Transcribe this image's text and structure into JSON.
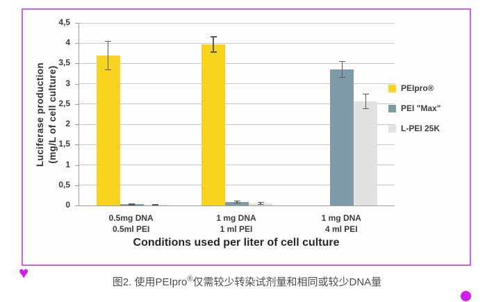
{
  "caption": {
    "prefix": "图2. 使用PEIpro",
    "sup": "®",
    "suffix": "仅需较少转染试剂量和相同或较少DNA量"
  },
  "icons": {
    "heart": "♥",
    "dot": "magenta-circle"
  },
  "colors": {
    "frame": "#cb63e8",
    "accent": "#ce1fec",
    "gridline": "#c9c9c9",
    "axis": "#9b9b9b",
    "errorbar": "#595959",
    "caption-text": "#4d4d4d"
  },
  "chart_data": {
    "type": "bar",
    "title": "",
    "xlabel": "Conditions used per liter of cell culture",
    "ylabel_line1": "Luciferase production",
    "ylabel_line2": "(mg/L of cell culture)",
    "ylim": [
      0,
      4.5
    ],
    "grid": true,
    "legend_position": "right",
    "yticks": [
      {
        "value": 0,
        "label": "0"
      },
      {
        "value": 0.5,
        "label": "0,5"
      },
      {
        "value": 1,
        "label": "1"
      },
      {
        "value": 1.5,
        "label": "1,5"
      },
      {
        "value": 2,
        "label": "2"
      },
      {
        "value": 2.5,
        "label": "2,5"
      },
      {
        "value": 3,
        "label": "3"
      },
      {
        "value": 3.5,
        "label": "3,5"
      },
      {
        "value": 4,
        "label": "4"
      },
      {
        "value": 4.5,
        "label": "4,5"
      }
    ],
    "categories": [
      {
        "line1": "0.5mg DNA",
        "line2": "0.5ml PEI"
      },
      {
        "line1": "1 mg DNA",
        "line2": "1 ml PEI"
      },
      {
        "line1": "1 mg DNA",
        "line2": "4 ml PEI"
      }
    ],
    "series": [
      {
        "name": "PEIpro®",
        "color": "#f8d41f",
        "values": [
          3.7,
          3.97,
          null
        ],
        "errors": [
          0.35,
          0.19,
          null
        ]
      },
      {
        "name": "PEI \"Max\"",
        "color": "#7d9ba8",
        "values": [
          0.03,
          0.09,
          3.35
        ],
        "errors": [
          0.015,
          0.03,
          0.2
        ]
      },
      {
        "name": "L-PEI 25K",
        "color": "#e2e2e0",
        "values": [
          0.02,
          0.05,
          2.57
        ],
        "errors": [
          0.012,
          0.025,
          0.18
        ]
      }
    ]
  }
}
